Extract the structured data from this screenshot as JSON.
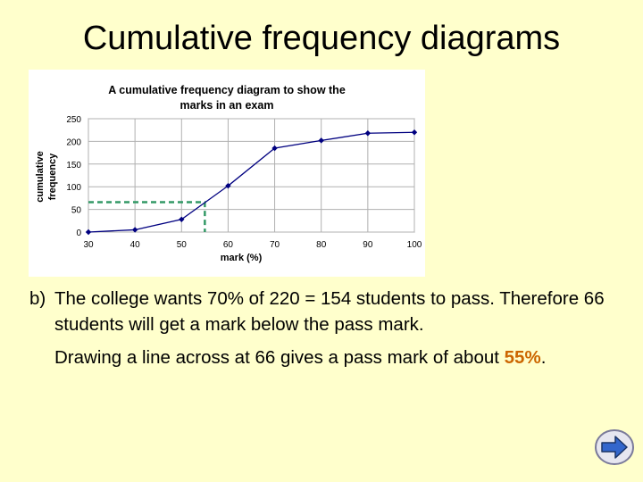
{
  "slide": {
    "title": "Cumulative frequency diagrams"
  },
  "text": {
    "part_label": "b)",
    "line1": "The college wants 70% of 220 = 154 students to pass. Therefore 66 students will get a mark below the pass mark.",
    "line2_prefix": "Drawing a line across at 66 gives a pass mark of about",
    "line2_answer": "55%",
    "line2_suffix": "."
  },
  "chart_data": {
    "type": "line",
    "title": "A cumulative frequency diagram to show the marks in an exam",
    "title_lines": [
      "A cumulative frequency diagram to show the",
      "marks in an exam"
    ],
    "xlabel": "mark (%)",
    "ylabel_lines": [
      "cumulative",
      "frequency"
    ],
    "x_ticks": [
      30,
      40,
      50,
      60,
      70,
      80,
      90,
      100
    ],
    "y_ticks": [
      0,
      50,
      100,
      150,
      200,
      250
    ],
    "xlim": [
      30,
      100
    ],
    "ylim": [
      0,
      250
    ],
    "grid": true,
    "series": [
      {
        "x": [
          30,
          40,
          50,
          60,
          70,
          80,
          90,
          100
        ],
        "y": [
          0,
          5,
          28,
          102,
          185,
          202,
          218,
          220
        ],
        "color": "#000080"
      }
    ],
    "annotation": {
      "type": "dashed-guide",
      "y_value": 66,
      "x_value": 55,
      "color": "#339966"
    }
  },
  "nav": {
    "next_icon": "arrow-right-icon",
    "button_color": "#3366cc"
  }
}
